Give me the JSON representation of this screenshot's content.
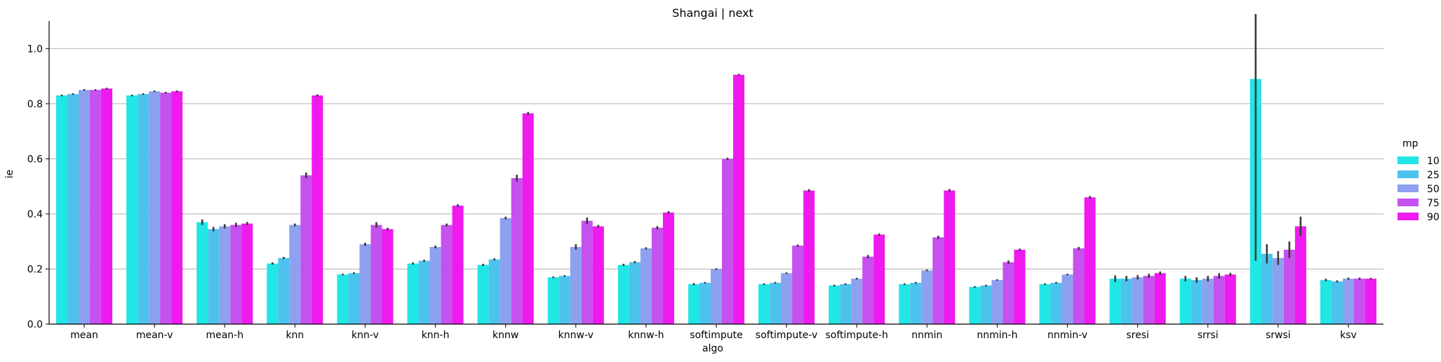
{
  "chart_data": {
    "type": "bar",
    "title": "Shangai | next",
    "xlabel": "algo",
    "ylabel": "ie",
    "ylim": [
      0,
      1.1
    ],
    "yticks": [
      0.0,
      0.2,
      0.4,
      0.6,
      0.8,
      1.0
    ],
    "ytick_labels": [
      "0.0",
      "0.2",
      "0.4",
      "0.6",
      "0.8",
      "1.0"
    ],
    "grid": "horizontal",
    "legend_title": "mp",
    "legend_position": "right",
    "error_bars": true,
    "categories": [
      "mean",
      "mean-v",
      "mean-h",
      "knn",
      "knn-v",
      "knn-h",
      "knnw",
      "knnw-v",
      "knnw-h",
      "softimpute",
      "softimpute-v",
      "softimpute-h",
      "nnmin",
      "nnmin-h",
      "nnmin-v",
      "sresi",
      "srrsi",
      "srwsi",
      "ksv"
    ],
    "series": [
      {
        "name": "10",
        "color": "#21e6e6",
        "values": [
          0.83,
          0.83,
          0.37,
          0.22,
          0.18,
          0.22,
          0.215,
          0.17,
          0.215,
          0.145,
          0.145,
          0.14,
          0.145,
          0.135,
          0.145,
          0.165,
          0.165,
          0.89,
          0.16
        ],
        "err": [
          0.003,
          0.003,
          0.01,
          0.004,
          0.003,
          0.004,
          0.004,
          0.003,
          0.004,
          0.004,
          0.003,
          0.003,
          0.003,
          0.003,
          0.003,
          0.012,
          0.01,
          0.66,
          0.005
        ]
      },
      {
        "name": "25",
        "color": "#4cc3ec",
        "values": [
          0.835,
          0.835,
          0.345,
          0.24,
          0.185,
          0.23,
          0.235,
          0.175,
          0.225,
          0.15,
          0.15,
          0.145,
          0.15,
          0.14,
          0.15,
          0.165,
          0.16,
          0.255,
          0.155
        ],
        "err": [
          0.003,
          0.003,
          0.008,
          0.004,
          0.003,
          0.004,
          0.004,
          0.003,
          0.004,
          0.003,
          0.003,
          0.003,
          0.003,
          0.003,
          0.003,
          0.01,
          0.01,
          0.035,
          0.004
        ]
      },
      {
        "name": "50",
        "color": "#8da1f0",
        "values": [
          0.85,
          0.845,
          0.355,
          0.36,
          0.29,
          0.28,
          0.385,
          0.28,
          0.275,
          0.2,
          0.185,
          0.165,
          0.195,
          0.16,
          0.18,
          0.17,
          0.165,
          0.24,
          0.165
        ],
        "err": [
          0.003,
          0.003,
          0.008,
          0.005,
          0.006,
          0.005,
          0.005,
          0.01,
          0.004,
          0.003,
          0.003,
          0.003,
          0.003,
          0.003,
          0.003,
          0.008,
          0.01,
          0.025,
          0.004
        ]
      },
      {
        "name": "75",
        "color": "#c551ee",
        "values": [
          0.85,
          0.84,
          0.36,
          0.54,
          0.36,
          0.36,
          0.53,
          0.375,
          0.35,
          0.6,
          0.285,
          0.245,
          0.315,
          0.225,
          0.275,
          0.175,
          0.175,
          0.27,
          0.165
        ],
        "err": [
          0.003,
          0.003,
          0.008,
          0.01,
          0.01,
          0.005,
          0.012,
          0.012,
          0.006,
          0.004,
          0.004,
          0.006,
          0.006,
          0.006,
          0.005,
          0.008,
          0.01,
          0.03,
          0.004
        ]
      },
      {
        "name": "90",
        "color": "#ee1aee",
        "values": [
          0.855,
          0.845,
          0.365,
          0.83,
          0.345,
          0.43,
          0.765,
          0.355,
          0.405,
          0.905,
          0.485,
          0.325,
          0.485,
          0.27,
          0.46,
          0.185,
          0.18,
          0.355,
          0.165
        ],
        "err": [
          0.003,
          0.003,
          0.006,
          0.004,
          0.005,
          0.005,
          0.005,
          0.005,
          0.005,
          0.003,
          0.005,
          0.004,
          0.005,
          0.004,
          0.005,
          0.006,
          0.006,
          0.035,
          0.003
        ]
      }
    ]
  }
}
